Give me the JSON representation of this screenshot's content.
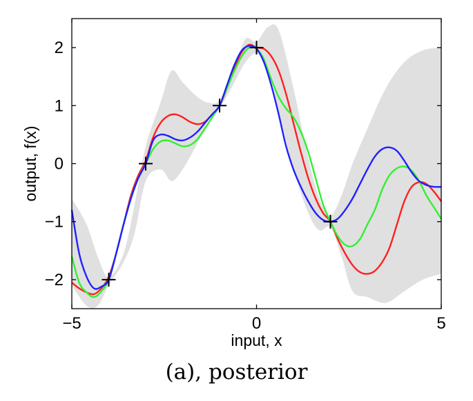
{
  "caption": "(a), posterior",
  "chart_data": {
    "type": "line",
    "xlabel": "input, x",
    "ylabel": "output, f(x)",
    "xlim": [
      -5,
      5
    ],
    "ylim": [
      -2.5,
      2.5
    ],
    "xticks": [
      -5,
      0,
      5
    ],
    "yticks": [
      -2,
      -1,
      0,
      1,
      2
    ],
    "grid": false,
    "band": {
      "color": "#e0e0e0",
      "x": [
        -5,
        -4.6,
        -4.3,
        -4,
        -3.6,
        -3.3,
        -3,
        -2.6,
        -2.3,
        -2,
        -1.6,
        -1.3,
        -1,
        -0.6,
        -0.3,
        0,
        0.3,
        0.6,
        1,
        1.4,
        1.7,
        2,
        2.3,
        2.6,
        3,
        3.5,
        4,
        4.5,
        5
      ],
      "upper": [
        -0.6,
        -1.05,
        -1.6,
        -1.95,
        -1.55,
        -0.7,
        0.3,
        1.05,
        1.6,
        1.4,
        1.15,
        1.05,
        1.1,
        1.65,
        2.15,
        2.1,
        2.35,
        2.3,
        1.3,
        0.1,
        -0.6,
        -0.9,
        -0.55,
        0.0,
        0.6,
        1.3,
        1.75,
        1.95,
        2.0
      ],
      "lower": [
        -2.1,
        -2.45,
        -2.45,
        -2.1,
        -1.7,
        -1.2,
        -0.3,
        -0.1,
        -0.3,
        -0.1,
        0.35,
        0.75,
        0.95,
        1.4,
        1.75,
        1.9,
        1.7,
        0.9,
        -0.1,
        -0.85,
        -1.15,
        -1.1,
        -1.6,
        -2.2,
        -2.3,
        -2.4,
        -2.2,
        -2.0,
        -1.9
      ]
    },
    "series": [
      {
        "color": "#ff2020",
        "x": [
          -5,
          -4.8,
          -4.6,
          -4.4,
          -4.2,
          -4,
          -3.8,
          -3.6,
          -3.4,
          -3.2,
          -3,
          -2.8,
          -2.6,
          -2.4,
          -2.2,
          -2,
          -1.8,
          -1.6,
          -1.4,
          -1.2,
          -1,
          -0.8,
          -0.6,
          -0.4,
          -0.2,
          0,
          0.2,
          0.4,
          0.6,
          0.8,
          1,
          1.2,
          1.4,
          1.6,
          1.8,
          2,
          2.2,
          2.4,
          2.6,
          2.8,
          3,
          3.2,
          3.4,
          3.6,
          3.8,
          4,
          4.2,
          4.4,
          4.6,
          4.8,
          5
        ],
        "y": [
          -2.05,
          -2.15,
          -2.22,
          -2.25,
          -2.15,
          -1.95,
          -1.55,
          -1.05,
          -0.55,
          -0.2,
          0.05,
          0.45,
          0.7,
          0.82,
          0.85,
          0.8,
          0.72,
          0.68,
          0.72,
          0.85,
          1.0,
          1.3,
          1.65,
          1.92,
          2.05,
          2.0,
          1.98,
          1.85,
          1.6,
          1.2,
          0.7,
          0.2,
          -0.25,
          -0.6,
          -0.85,
          -1.0,
          -1.3,
          -1.55,
          -1.75,
          -1.87,
          -1.9,
          -1.85,
          -1.7,
          -1.45,
          -1.05,
          -0.65,
          -0.4,
          -0.32,
          -0.35,
          -0.48,
          -0.65
        ]
      },
      {
        "color": "#30f030",
        "x": [
          -5,
          -4.8,
          -4.6,
          -4.4,
          -4.2,
          -4,
          -3.8,
          -3.6,
          -3.4,
          -3.2,
          -3,
          -2.8,
          -2.6,
          -2.4,
          -2.2,
          -2,
          -1.8,
          -1.6,
          -1.4,
          -1.2,
          -1,
          -0.8,
          -0.6,
          -0.4,
          -0.2,
          0,
          0.2,
          0.4,
          0.6,
          0.8,
          1,
          1.2,
          1.4,
          1.6,
          1.8,
          2,
          2.2,
          2.4,
          2.6,
          2.8,
          3,
          3.2,
          3.4,
          3.6,
          3.8,
          4,
          4.2,
          4.4,
          4.6,
          4.8,
          5
        ],
        "y": [
          -1.6,
          -2.05,
          -2.22,
          -2.3,
          -2.2,
          -2.0,
          -1.55,
          -1.05,
          -0.6,
          -0.25,
          0.0,
          0.25,
          0.38,
          0.4,
          0.35,
          0.3,
          0.32,
          0.42,
          0.6,
          0.8,
          1.0,
          1.3,
          1.6,
          1.85,
          2.0,
          1.98,
          1.8,
          1.45,
          1.15,
          0.95,
          0.8,
          0.55,
          0.2,
          -0.25,
          -0.7,
          -1.0,
          -1.25,
          -1.4,
          -1.42,
          -1.3,
          -1.05,
          -0.8,
          -0.45,
          -0.2,
          -0.08,
          -0.05,
          -0.12,
          -0.3,
          -0.55,
          -0.75,
          -0.95
        ]
      },
      {
        "color": "#2020ff",
        "x": [
          -5,
          -4.8,
          -4.6,
          -4.4,
          -4.2,
          -4,
          -3.8,
          -3.6,
          -3.4,
          -3.2,
          -3,
          -2.8,
          -2.6,
          -2.4,
          -2.2,
          -2,
          -1.8,
          -1.6,
          -1.4,
          -1.2,
          -1,
          -0.8,
          -0.6,
          -0.4,
          -0.2,
          0,
          0.2,
          0.4,
          0.6,
          0.8,
          1,
          1.2,
          1.4,
          1.6,
          1.8,
          2,
          2.2,
          2.4,
          2.6,
          2.8,
          3,
          3.2,
          3.4,
          3.6,
          3.8,
          4,
          4.2,
          4.4,
          4.6,
          4.8,
          5
        ],
        "y": [
          -0.8,
          -1.55,
          -1.95,
          -2.15,
          -2.12,
          -2.0,
          -1.55,
          -1.05,
          -0.6,
          -0.25,
          0.0,
          0.4,
          0.5,
          0.48,
          0.42,
          0.4,
          0.45,
          0.55,
          0.7,
          0.85,
          1.0,
          1.35,
          1.7,
          1.95,
          2.03,
          1.98,
          1.75,
          1.35,
          0.85,
          0.3,
          -0.1,
          -0.4,
          -0.65,
          -0.85,
          -0.97,
          -1.0,
          -0.95,
          -0.8,
          -0.6,
          -0.35,
          -0.1,
          0.12,
          0.25,
          0.28,
          0.22,
          0.05,
          -0.15,
          -0.3,
          -0.37,
          -0.4,
          -0.4
        ]
      }
    ],
    "observations": [
      {
        "x": -4,
        "y": -2
      },
      {
        "x": -3,
        "y": 0
      },
      {
        "x": -1,
        "y": 1
      },
      {
        "x": 0,
        "y": 2
      },
      {
        "x": 2,
        "y": -1
      }
    ]
  }
}
